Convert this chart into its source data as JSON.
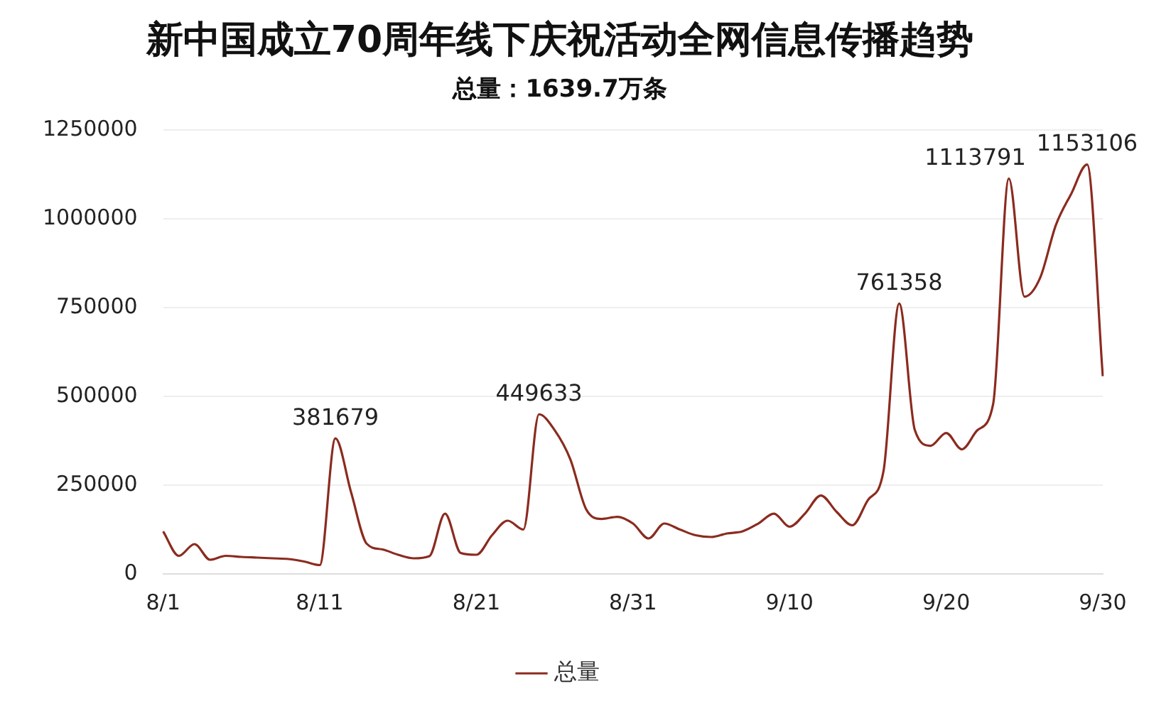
{
  "chart_data": {
    "type": "line",
    "title": "新中国成立70周年线下庆祝活动全网信息传播趋势",
    "subtitle": "总量：1639.7万条",
    "categories": [
      "8/1",
      null,
      null,
      null,
      null,
      null,
      null,
      null,
      null,
      null,
      "8/11",
      null,
      null,
      null,
      null,
      null,
      null,
      null,
      null,
      null,
      "8/21",
      null,
      null,
      null,
      null,
      null,
      null,
      null,
      null,
      null,
      "8/31",
      null,
      null,
      null,
      null,
      null,
      null,
      null,
      null,
      null,
      "9/10",
      null,
      null,
      null,
      null,
      null,
      null,
      null,
      null,
      null,
      "9/20",
      null,
      null,
      null,
      null,
      null,
      null,
      null,
      null,
      null,
      "9/30"
    ],
    "series": [
      {
        "name": "总量",
        "color": "#8b2b1f",
        "values": [
          120000,
          51000,
          84000,
          40000,
          51000,
          48000,
          46000,
          44000,
          42000,
          35000,
          25000,
          381679,
          230000,
          85000,
          69000,
          54000,
          44000,
          50000,
          170000,
          59000,
          54000,
          109000,
          150000,
          125000,
          449633,
          405000,
          323000,
          183000,
          155000,
          161000,
          142000,
          100000,
          142000,
          125000,
          109000,
          104000,
          114000,
          120000,
          142000,
          170000,
          133000,
          171000,
          221000,
          175000,
          137000,
          208000,
          290000,
          761358,
          405000,
          361000,
          397000,
          351000,
          405000,
          479000,
          1113791,
          781000,
          834000,
          982000,
          1072000,
          1153106,
          557000
        ],
        "value_labels": [
          null,
          null,
          null,
          null,
          null,
          null,
          null,
          null,
          null,
          null,
          null,
          "381679",
          null,
          null,
          null,
          null,
          null,
          null,
          null,
          null,
          null,
          null,
          null,
          null,
          "449633",
          null,
          null,
          null,
          null,
          null,
          null,
          null,
          null,
          null,
          null,
          null,
          null,
          null,
          null,
          null,
          null,
          null,
          null,
          null,
          null,
          null,
          null,
          "761358",
          null,
          null,
          null,
          null,
          null,
          null,
          "1113791",
          null,
          null,
          null,
          null,
          "1153106",
          null
        ]
      }
    ],
    "ylim": [
      0,
      1250000
    ],
    "yticks": [
      0,
      250000,
      500000,
      750000,
      1000000,
      1250000
    ],
    "grid": "y",
    "legend": "bottom",
    "line_style": "solid"
  }
}
